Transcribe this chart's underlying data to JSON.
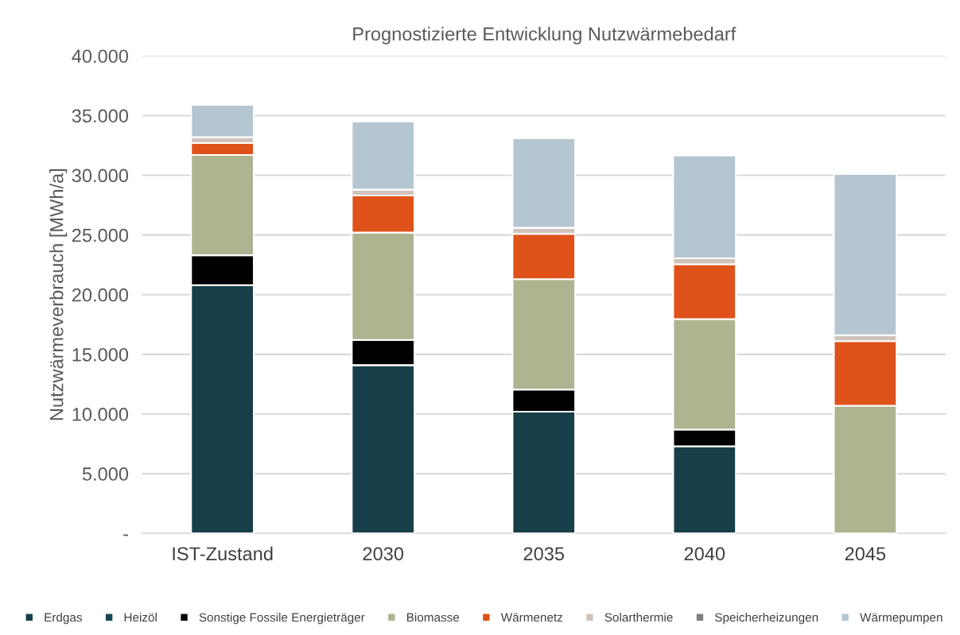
{
  "chart_data": {
    "type": "bar",
    "stacked": true,
    "title": "Prognostizierte Entwicklung Nutzwärmebedarf",
    "ylabel": "Nutzwärmeverbrauch [MWh/a]",
    "categories": [
      "IST-Zustand",
      "2030",
      "2035",
      "2040",
      "2045"
    ],
    "series": [
      {
        "name": "Erdgas",
        "color": "#173f4a",
        "values": [
          20800,
          14100,
          10200,
          7300,
          0
        ]
      },
      {
        "name": "Heizöl",
        "color": "#174750",
        "values": [
          0,
          0,
          0,
          0,
          0
        ]
      },
      {
        "name": "Sonstige Fossile Energieträger",
        "color": "#000000",
        "values": [
          2500,
          2100,
          1850,
          1400,
          0
        ]
      },
      {
        "name": "Biomasse",
        "color": "#aeb48f",
        "values": [
          8400,
          9000,
          9250,
          9250,
          10700
        ]
      },
      {
        "name": "Wärmenetz",
        "color": "#df521a",
        "values": [
          1000,
          3100,
          3800,
          4600,
          5400
        ]
      },
      {
        "name": "Solarthermie",
        "color": "#d1c3bb",
        "values": [
          500,
          500,
          500,
          500,
          500
        ]
      },
      {
        "name": "Speicherheizungen",
        "color": "#7f7f7f",
        "values": [
          0,
          0,
          0,
          0,
          0
        ]
      },
      {
        "name": "Wärmepumpen",
        "color": "#b3c6d1",
        "values": [
          2700,
          5700,
          7500,
          8600,
          13500
        ]
      }
    ],
    "ylim": [
      0,
      40000
    ],
    "yticks": [
      {
        "value": 0,
        "label": "-"
      },
      {
        "value": 5000,
        "label": "5.000"
      },
      {
        "value": 10000,
        "label": "10.000"
      },
      {
        "value": 15000,
        "label": "15.000"
      },
      {
        "value": 20000,
        "label": "20.000"
      },
      {
        "value": 25000,
        "label": "25.000"
      },
      {
        "value": 30000,
        "label": "30.000"
      },
      {
        "value": 35000,
        "label": "35.000"
      },
      {
        "value": 40000,
        "label": "40.000"
      }
    ],
    "grid": "y",
    "legend": "bottom"
  }
}
